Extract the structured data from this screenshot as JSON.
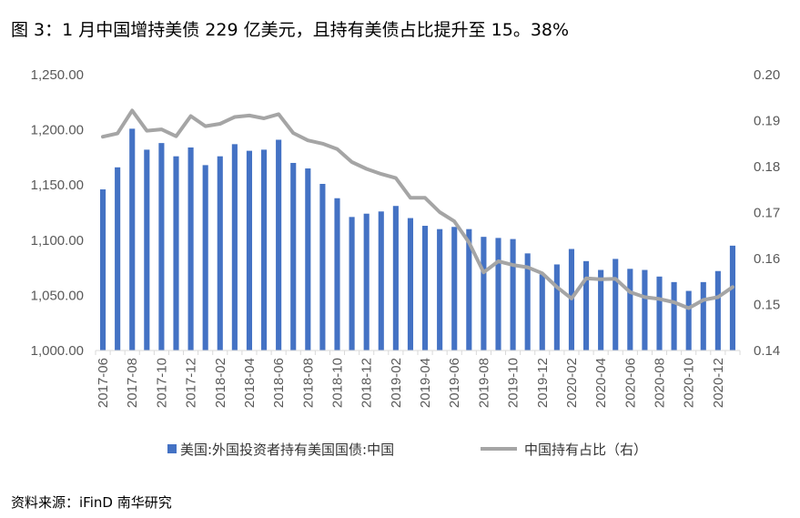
{
  "title": "图 3：1 月中国增持美债 229 亿美元，且持有美债占比提升至 15。38%",
  "source": "资料来源：iFinD  南华研究",
  "chart_data": {
    "type": "bar+line",
    "categories": [
      "2017-06",
      "2017-07",
      "2017-08",
      "2017-09",
      "2017-10",
      "2017-11",
      "2017-12",
      "2018-01",
      "2018-02",
      "2018-03",
      "2018-04",
      "2018-05",
      "2018-06",
      "2018-07",
      "2018-08",
      "2018-09",
      "2018-10",
      "2018-11",
      "2018-12",
      "2019-01",
      "2019-02",
      "2019-03",
      "2019-04",
      "2019-05",
      "2019-06",
      "2019-07",
      "2019-08",
      "2019-09",
      "2019-10",
      "2019-11",
      "2019-12",
      "2020-01",
      "2020-02",
      "2020-03",
      "2020-04",
      "2020-05",
      "2020-06",
      "2020-07",
      "2020-08",
      "2020-09",
      "2020-10",
      "2020-11",
      "2020-12",
      "2021-01"
    ],
    "x_tick_labels": [
      "2017-06",
      "2017-08",
      "2017-10",
      "2017-12",
      "2018-02",
      "2018-04",
      "2018-06",
      "2018-08",
      "2018-10",
      "2018-12",
      "2019-02",
      "2019-04",
      "2019-06",
      "2019-08",
      "2019-10",
      "2019-12",
      "2020-02",
      "2020-04",
      "2020-06",
      "2020-08",
      "2020-10",
      "2020-12"
    ],
    "series": [
      {
        "name": "美国:外国投资者持有美国国债:中国",
        "type": "bar",
        "axis": "left",
        "color": "#4472c4",
        "values": [
          1146,
          1166,
          1201,
          1182,
          1188,
          1176,
          1184,
          1168,
          1176,
          1187,
          1181,
          1182,
          1191,
          1170,
          1165,
          1151,
          1138,
          1121,
          1124,
          1126,
          1131,
          1120,
          1113,
          1110,
          1112,
          1110,
          1103,
          1102,
          1101,
          1088,
          1069,
          1078,
          1092,
          1081,
          1073,
          1083,
          1074,
          1073,
          1067,
          1062,
          1054,
          1062,
          1072,
          1095
        ]
      },
      {
        "name": "中国持有占比（右）",
        "type": "line",
        "axis": "right",
        "color": "#a5a5a5",
        "values": [
          0.1865,
          0.1872,
          0.1922,
          0.1878,
          0.1881,
          0.1866,
          0.191,
          0.1888,
          0.1893,
          0.1908,
          0.1911,
          0.1905,
          0.1914,
          0.1873,
          0.1857,
          0.185,
          0.1838,
          0.181,
          0.1795,
          0.1784,
          0.1775,
          0.1732,
          0.1732,
          0.1701,
          0.1681,
          0.1635,
          0.157,
          0.1594,
          0.1586,
          0.1581,
          0.1568,
          0.1538,
          0.1513,
          0.1557,
          0.1555,
          0.1556,
          0.1527,
          0.1516,
          0.1512,
          0.1505,
          0.1492,
          0.151,
          0.1516,
          0.1538
        ]
      }
    ],
    "y_left": {
      "ticks": [
        "1,000.00",
        "1,050.00",
        "1,100.00",
        "1,150.00",
        "1,200.00",
        "1,250.00"
      ],
      "min": 1000,
      "max": 1250
    },
    "y_right": {
      "ticks": [
        "0.14",
        "0.15",
        "0.16",
        "0.17",
        "0.18",
        "0.19",
        "0.20"
      ],
      "min": 0.14,
      "max": 0.2
    },
    "legend": [
      {
        "label": "美国:外国投资者持有美国国债:中国",
        "color": "#4472c4",
        "kind": "bar"
      },
      {
        "label": "中国持有占比（右）",
        "color": "#a5a5a5",
        "kind": "line"
      }
    ],
    "legend_placement": "bottom",
    "grid": false
  }
}
